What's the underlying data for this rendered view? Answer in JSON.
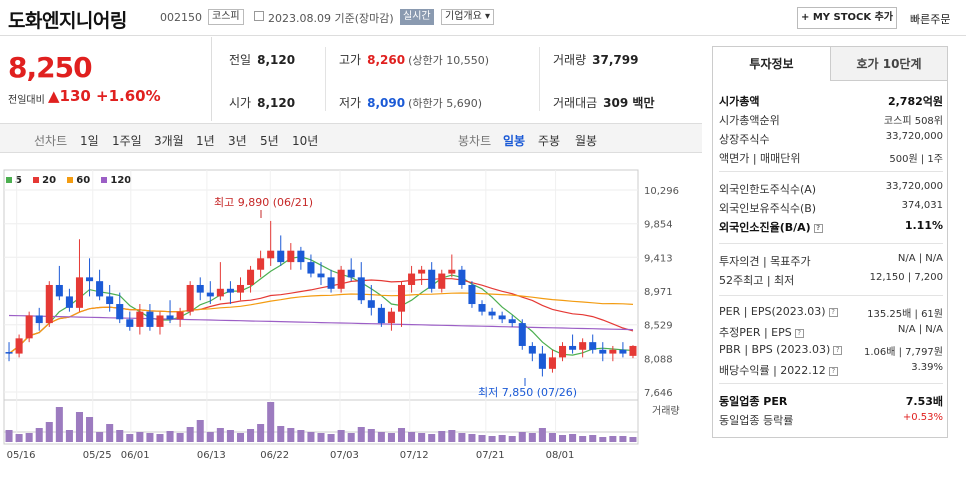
{
  "header": {
    "name": "도화엔지니어링",
    "code": "002150",
    "market": "코스피",
    "date": "2023.08.09 기준(장마감)",
    "live": "실시간",
    "company_info": "기업개요 ▾",
    "mystock": "+ MY STOCK 추가",
    "quick_order": "빠른주문"
  },
  "price": {
    "current": "8,250",
    "change_label": "전일대비",
    "change": "▲130",
    "change_pct": "+1.60%"
  },
  "quote": {
    "prev_label": "전일",
    "prev": "8,120",
    "high_label": "고가",
    "high": "8,260",
    "high_limit": "(상한가 10,550)",
    "volume_label": "거래량",
    "volume": "37,799",
    "open_label": "시가",
    "open": "8,120",
    "low_label": "저가",
    "low": "8,090",
    "low_limit": "(하한가 5,690)",
    "amount_label": "거래대금",
    "amount": "309 백만"
  },
  "tabs": {
    "line_label": "선차트",
    "periods": [
      "1일",
      "1주일",
      "3개월",
      "1년",
      "3년",
      "5년",
      "10년"
    ],
    "candle_label": "봉차트",
    "candles": [
      "일봉",
      "주봉",
      "월봉"
    ],
    "active_candle": "일봉"
  },
  "chart_data": {
    "type": "candlestick",
    "legend": [
      "5",
      "20",
      "60",
      "120"
    ],
    "legend_colors": [
      "#4caf50",
      "#e53935",
      "#f39c12",
      "#9c5fc6"
    ],
    "y_ticks": [
      "10,296",
      "9,854",
      "9,413",
      "8,971",
      "8,529",
      "8,088",
      "7,646"
    ],
    "y_tick_values": [
      10296,
      9854,
      9413,
      8971,
      8529,
      8088,
      7646
    ],
    "x_ticks": [
      "05/16",
      "05/25",
      "06/01",
      "06/13",
      "06/22",
      "07/03",
      "07/12",
      "07/21",
      "08/01"
    ],
    "high_annotation": "최고 9,890 (06/21)",
    "low_annotation": "최저 7,850 (07/26)",
    "volume_label": "거래량",
    "candles": [
      [
        8170,
        8300,
        8050,
        8150
      ],
      [
        8150,
        8400,
        8100,
        8350
      ],
      [
        8350,
        8700,
        8300,
        8650
      ],
      [
        8650,
        8750,
        8450,
        8550
      ],
      [
        8550,
        9100,
        8500,
        9050
      ],
      [
        9050,
        9300,
        8850,
        8900
      ],
      [
        8900,
        9000,
        8700,
        8750
      ],
      [
        8750,
        9650,
        8700,
        9150
      ],
      [
        9150,
        9400,
        8900,
        9100
      ],
      [
        9100,
        9250,
        8850,
        8900
      ],
      [
        8900,
        9050,
        8700,
        8800
      ],
      [
        8800,
        8950,
        8550,
        8600
      ],
      [
        8600,
        8700,
        8450,
        8500
      ],
      [
        8500,
        8800,
        8400,
        8700
      ],
      [
        8700,
        8800,
        8450,
        8500
      ],
      [
        8500,
        8700,
        8400,
        8650
      ],
      [
        8650,
        8850,
        8550,
        8600
      ],
      [
        8600,
        8750,
        8500,
        8700
      ],
      [
        8700,
        9100,
        8650,
        9050
      ],
      [
        9050,
        9150,
        8850,
        8950
      ],
      [
        8950,
        9100,
        8800,
        8900
      ],
      [
        8900,
        9350,
        8850,
        9000
      ],
      [
        9000,
        9100,
        8800,
        8950
      ],
      [
        8950,
        9150,
        8850,
        9050
      ],
      [
        9050,
        9300,
        8950,
        9250
      ],
      [
        9250,
        9500,
        9150,
        9400
      ],
      [
        9400,
        9890,
        9300,
        9500
      ],
      [
        9500,
        9700,
        9300,
        9350
      ],
      [
        9350,
        9600,
        9250,
        9500
      ],
      [
        9500,
        9550,
        9250,
        9350
      ],
      [
        9350,
        9450,
        9150,
        9200
      ],
      [
        9200,
        9350,
        9050,
        9150
      ],
      [
        9150,
        9250,
        8950,
        9000
      ],
      [
        9000,
        9300,
        8950,
        9250
      ],
      [
        9250,
        9400,
        9100,
        9150
      ],
      [
        9150,
        9350,
        8800,
        8850
      ],
      [
        8850,
        9050,
        8650,
        8750
      ],
      [
        8750,
        8800,
        8500,
        8550
      ],
      [
        8550,
        8750,
        8450,
        8700
      ],
      [
        8700,
        9100,
        8500,
        9050
      ],
      [
        9050,
        9300,
        8950,
        9200
      ],
      [
        9200,
        9300,
        9050,
        9250
      ],
      [
        9250,
        9350,
        8950,
        9000
      ],
      [
        9000,
        9250,
        8950,
        9200
      ],
      [
        9200,
        9450,
        9150,
        9250
      ],
      [
        9250,
        9300,
        9000,
        9050
      ],
      [
        9050,
        9100,
        8750,
        8800
      ],
      [
        8800,
        8850,
        8650,
        8700
      ],
      [
        8700,
        8750,
        8600,
        8650
      ],
      [
        8650,
        8700,
        8550,
        8600
      ],
      [
        8600,
        8650,
        8500,
        8550
      ],
      [
        8550,
        8600,
        8200,
        8250
      ],
      [
        8250,
        8300,
        8050,
        8150
      ],
      [
        8150,
        8250,
        7850,
        7950
      ],
      [
        7950,
        8200,
        7900,
        8100
      ],
      [
        8100,
        8300,
        8050,
        8250
      ],
      [
        8250,
        8400,
        8150,
        8200
      ],
      [
        8200,
        8350,
        8100,
        8300
      ],
      [
        8300,
        8400,
        8150,
        8200
      ],
      [
        8200,
        8300,
        8050,
        8150
      ],
      [
        8150,
        8250,
        8050,
        8200
      ],
      [
        8200,
        8300,
        8100,
        8150
      ],
      [
        8120,
        8260,
        8090,
        8250
      ]
    ],
    "volumes": [
      12,
      8,
      9,
      14,
      20,
      35,
      12,
      30,
      25,
      10,
      18,
      12,
      8,
      10,
      9,
      8,
      11,
      9,
      15,
      22,
      10,
      14,
      12,
      9,
      13,
      18,
      40,
      16,
      14,
      12,
      10,
      9,
      8,
      12,
      9,
      15,
      13,
      10,
      9,
      14,
      10,
      9,
      8,
      11,
      12,
      9,
      8,
      7,
      6,
      7,
      6,
      10,
      9,
      14,
      9,
      7,
      8,
      6,
      7,
      5,
      6,
      6,
      5
    ]
  },
  "side": {
    "tab_active": "투자정보",
    "tab_other": "호가 10단계",
    "rows1": [
      {
        "k": "시가총액",
        "v": "2,782억원",
        "bold": true
      },
      {
        "k": "시가총액순위",
        "v": "코스피 508위"
      },
      {
        "k": "상장주식수",
        "v": "33,720,000"
      },
      {
        "k": "액면가 | 매매단위",
        "v": "500원 | 1주"
      }
    ],
    "rows2": [
      {
        "k": "외국인한도주식수(A)",
        "v": "33,720,000"
      },
      {
        "k": "외국인보유주식수(B)",
        "v": "374,031"
      },
      {
        "k": "외국인소진율(B/A)",
        "v": "1.11%",
        "bold": true
      }
    ],
    "rows3": [
      {
        "k": "투자의견 | 목표주가",
        "v": "N/A | N/A"
      },
      {
        "k": "52주최고 | 최저",
        "v": "12,150 | 7,200"
      }
    ],
    "rows4": [
      {
        "k": "PER | EPS(2023.03)",
        "v": "135.25배 | 61원"
      },
      {
        "k": "추정PER | EPS",
        "v": "N/A | N/A"
      },
      {
        "k": "PBR | BPS (2023.03)",
        "v": "1.06배 | 7,797원"
      },
      {
        "k": "배당수익률 | 2022.12",
        "v": "3.39%"
      }
    ],
    "rows5": [
      {
        "k": "동일업종 PER",
        "v": "7.53배",
        "bold": true
      },
      {
        "k": "동일업종 등락률",
        "v": "+0.53%",
        "red": true
      }
    ]
  }
}
